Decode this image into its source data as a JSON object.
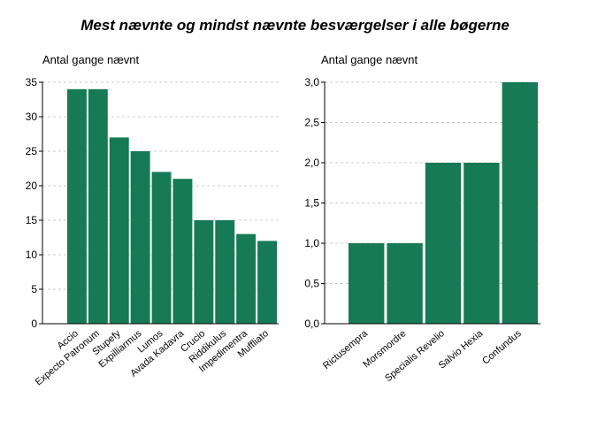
{
  "title": "Mest nævnte og mindst nævnte besværgelser i alle bøgerne",
  "colors": {
    "bar": "#157a55",
    "grid": "#cccccc",
    "axis": "#000000"
  },
  "chart_data": [
    {
      "type": "bar",
      "ylabel": "Antal gange nævnt",
      "ylim": [
        0,
        35
      ],
      "yticks": [
        0,
        5,
        10,
        15,
        20,
        25,
        30,
        35
      ],
      "ytick_labels": [
        "0",
        "5",
        "10",
        "15",
        "20",
        "25",
        "30",
        "35"
      ],
      "grid": true,
      "categories": [
        "Accio",
        "Expecto Patronum",
        "Stupefy",
        "Expilliarmus",
        "Lumos",
        "Avada Kadavra",
        "Crucio",
        "Riddikulus",
        "Impedimentra",
        "Muffliato"
      ],
      "values": [
        34,
        34,
        27,
        25,
        22,
        21,
        15,
        15,
        13,
        12
      ]
    },
    {
      "type": "bar",
      "ylabel": "Antal gange nævnt",
      "ylim": [
        0,
        3
      ],
      "yticks": [
        0,
        0.5,
        1,
        1.5,
        2,
        2.5,
        3
      ],
      "ytick_labels": [
        "0,0",
        "0,5",
        "1,0",
        "1,5",
        "2,0",
        "2,5",
        "3,0"
      ],
      "grid": true,
      "categories": [
        "Rictusempra",
        "Morsmordre",
        "Specialis Revelio",
        "Salvio Hexia",
        "Confundus"
      ],
      "values": [
        1,
        1,
        2,
        2,
        3
      ]
    }
  ]
}
